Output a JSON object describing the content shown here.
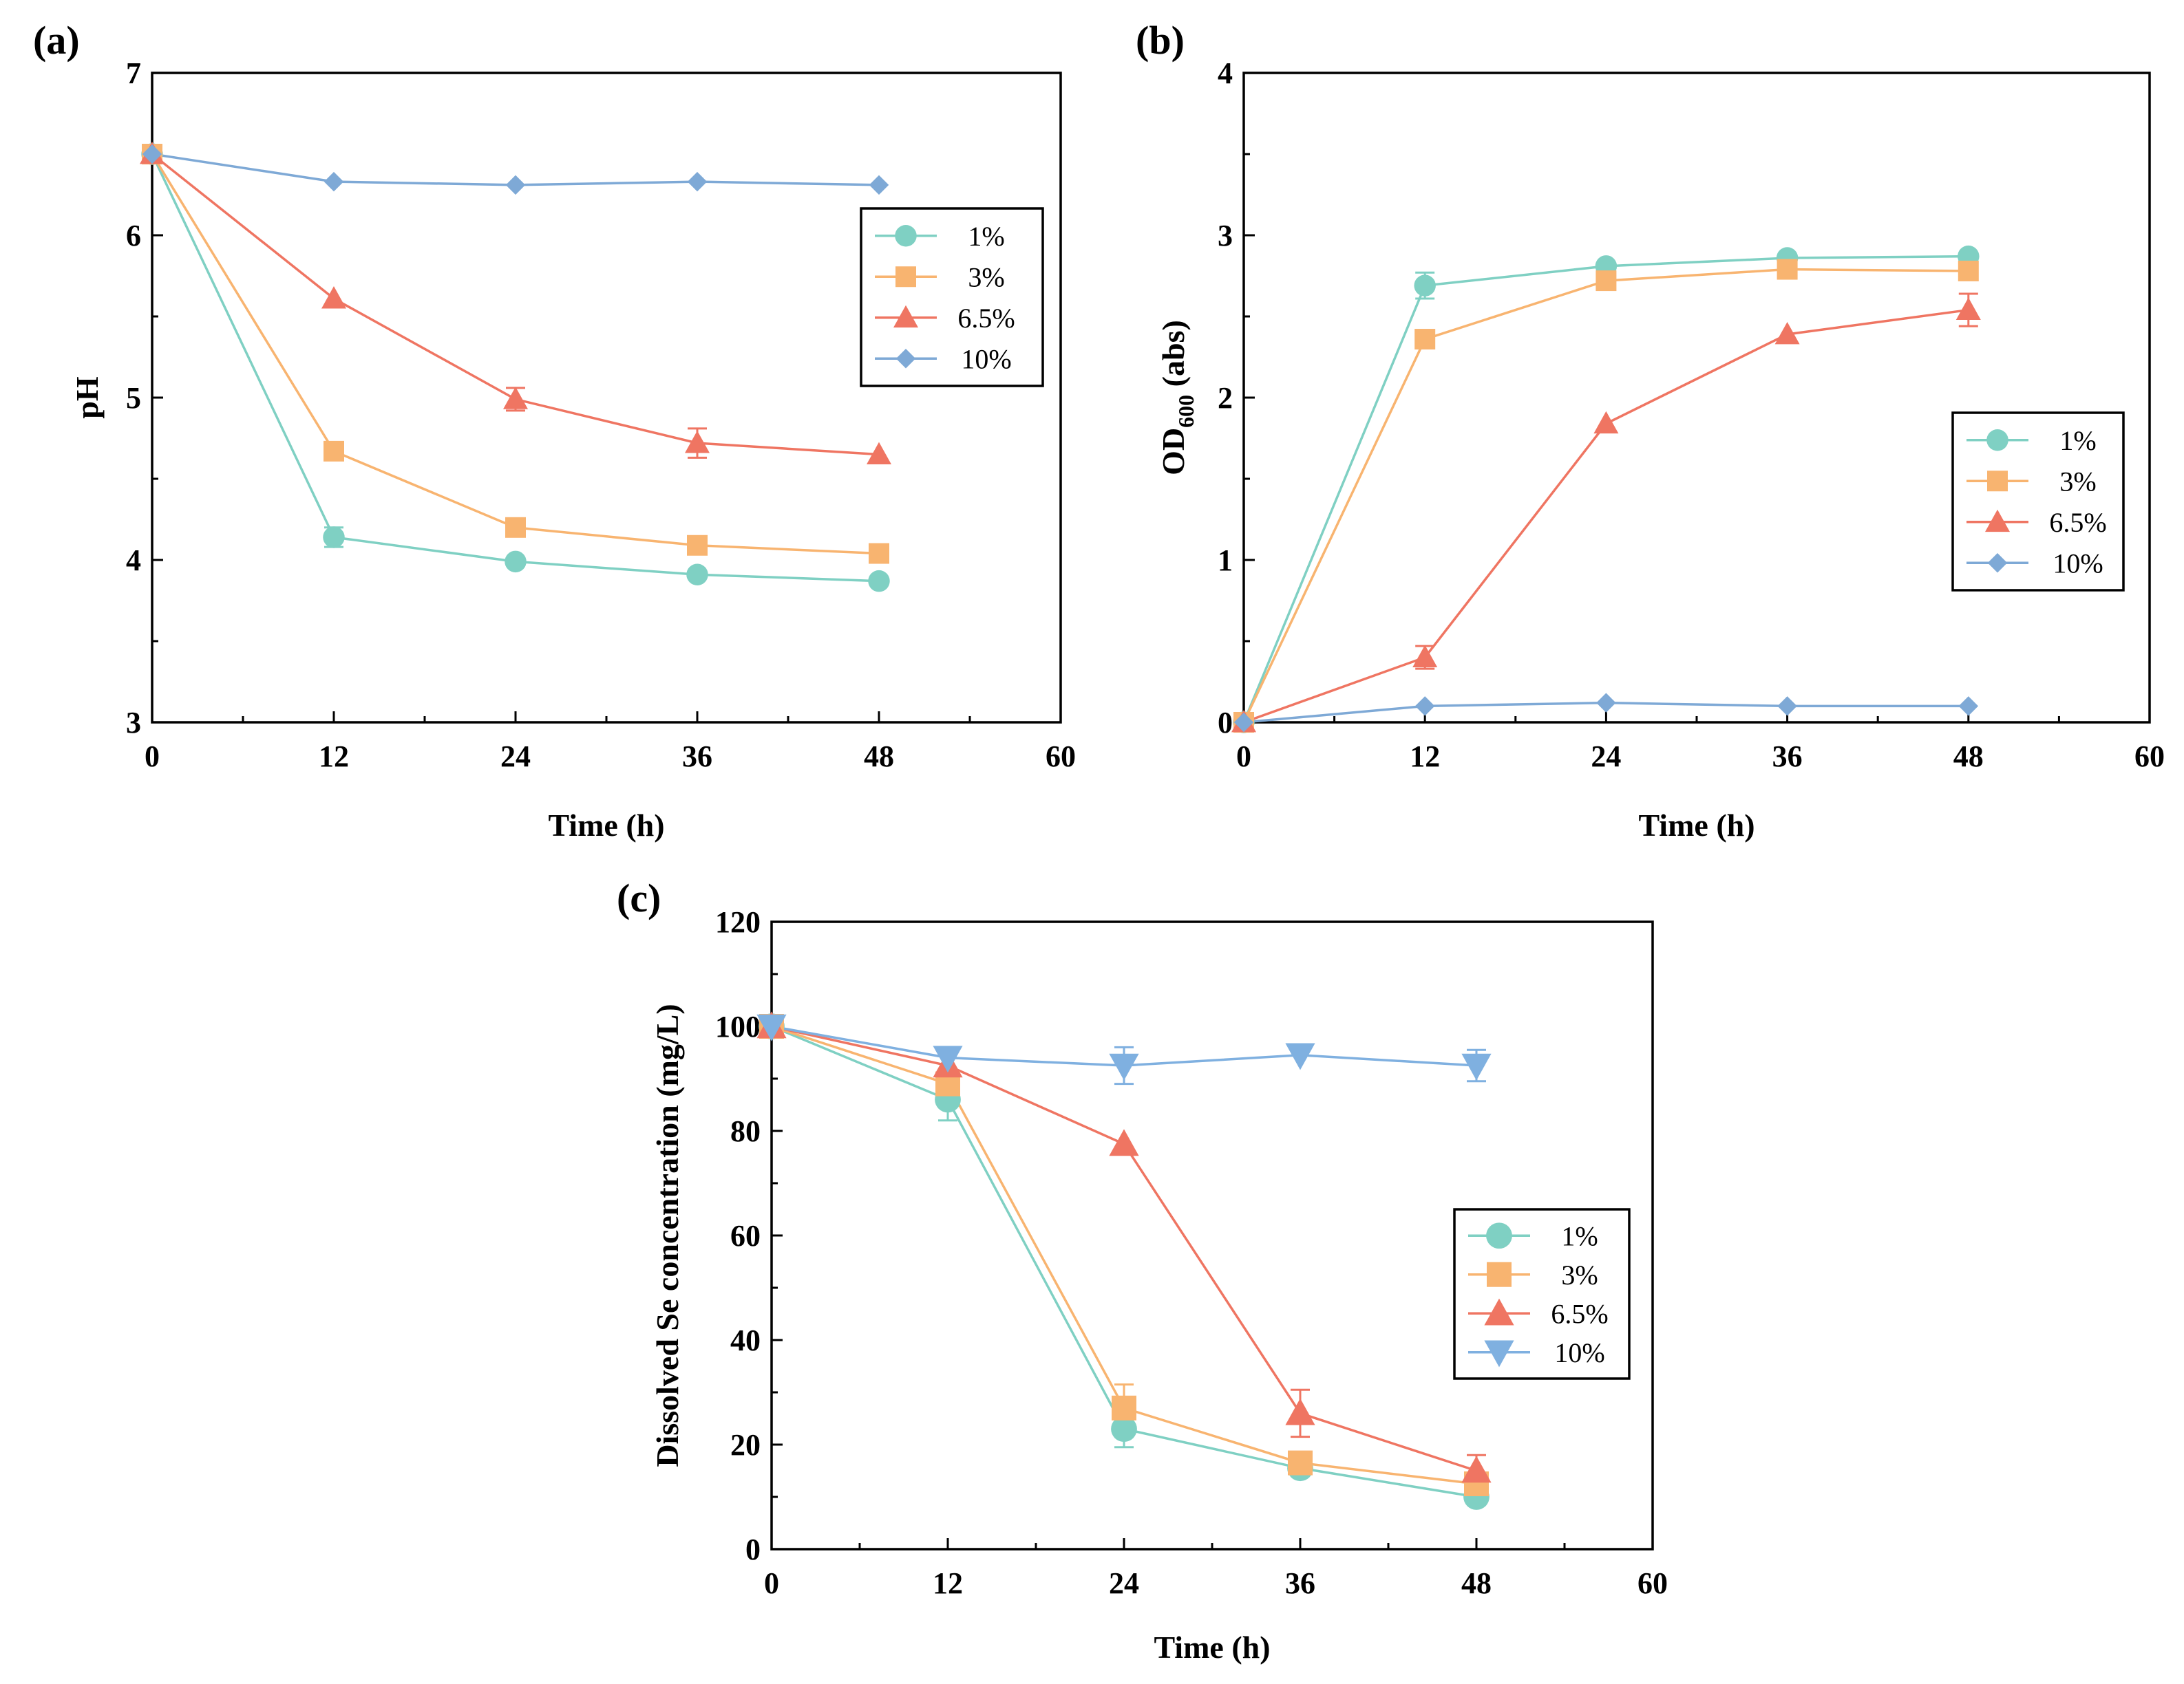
{
  "colors": {
    "teal": "#7fd0c3",
    "orange": "#f8b470",
    "red": "#ef7562",
    "blue": "#7ea9d6",
    "blue_light": "#7fb0e0"
  },
  "chart_data": [
    {
      "type": "line",
      "panel_label": "(a)",
      "xlabel": "Time (h)",
      "ylabel": "pH",
      "xlim": [
        0,
        60
      ],
      "ylim": [
        3,
        7
      ],
      "xticks": [
        0,
        12,
        24,
        36,
        48,
        60
      ],
      "yticks": [
        3,
        4,
        5,
        6,
        7
      ],
      "x_tick_labels": [
        "0",
        "12",
        "24",
        "36",
        "48",
        "60"
      ],
      "y_tick_labels": [
        "3",
        "4",
        "5",
        "6",
        "7"
      ],
      "x": [
        0,
        12,
        24,
        36,
        48
      ],
      "legend_position": "upper-right",
      "series": [
        {
          "name": "1%",
          "marker": "circle",
          "color": "#7fd0c3",
          "values": [
            6.5,
            4.14,
            3.99,
            3.91,
            3.87
          ],
          "errors": [
            0,
            0.06,
            0,
            0,
            0
          ]
        },
        {
          "name": "3%",
          "marker": "square",
          "color": "#f8b470",
          "values": [
            6.5,
            4.67,
            4.2,
            4.09,
            4.04
          ],
          "errors": [
            0,
            0.05,
            0,
            0,
            0
          ]
        },
        {
          "name": "6.5%",
          "marker": "triangle-up",
          "color": "#ef7562",
          "values": [
            6.5,
            5.61,
            4.99,
            4.72,
            4.65
          ],
          "errors": [
            0,
            0,
            0.07,
            0.09,
            0
          ]
        },
        {
          "name": "10%",
          "marker": "diamond",
          "color": "#7ea9d6",
          "values": [
            6.5,
            6.33,
            6.31,
            6.33,
            6.31
          ],
          "errors": [
            0,
            0,
            0,
            0,
            0
          ]
        }
      ]
    },
    {
      "type": "line",
      "panel_label": "(b)",
      "xlabel": "Time (h)",
      "ylabel_main": "OD",
      "ylabel_sub": "600",
      "ylabel_rest": " (abs)",
      "xlim": [
        0,
        60
      ],
      "ylim": [
        0,
        4
      ],
      "xticks": [
        0,
        12,
        24,
        36,
        48,
        60
      ],
      "yticks": [
        0,
        1,
        2,
        3,
        4
      ],
      "x_tick_labels": [
        "0",
        "12",
        "24",
        "36",
        "48",
        "60"
      ],
      "y_tick_labels": [
        "0",
        "1",
        "2",
        "3",
        "4"
      ],
      "x": [
        0,
        12,
        24,
        36,
        48
      ],
      "legend_position": "right",
      "series": [
        {
          "name": "1%",
          "marker": "circle",
          "color": "#7fd0c3",
          "values": [
            0,
            2.69,
            2.81,
            2.86,
            2.87
          ],
          "errors": [
            0,
            0.08,
            0,
            0,
            0
          ]
        },
        {
          "name": "3%",
          "marker": "square",
          "color": "#f8b470",
          "values": [
            0,
            2.36,
            2.72,
            2.79,
            2.78
          ],
          "errors": [
            0,
            0,
            0.04,
            0,
            0
          ]
        },
        {
          "name": "6.5%",
          "marker": "triangle-up",
          "color": "#ef7562",
          "values": [
            0,
            0.4,
            1.84,
            2.39,
            2.54
          ],
          "errors": [
            0,
            0.07,
            0,
            0,
            0.1
          ]
        },
        {
          "name": "10%",
          "marker": "diamond",
          "color": "#7ea9d6",
          "values": [
            0,
            0.1,
            0.12,
            0.1,
            0.1
          ],
          "errors": [
            0,
            0,
            0,
            0,
            0
          ]
        }
      ]
    },
    {
      "type": "line",
      "panel_label": "(c)",
      "xlabel": "Time (h)",
      "ylabel": "Dissolved Se concentration (mg/L)",
      "xlim": [
        0,
        60
      ],
      "ylim": [
        0,
        120
      ],
      "xticks": [
        0,
        12,
        24,
        36,
        48,
        60
      ],
      "yticks": [
        0,
        20,
        40,
        60,
        80,
        100,
        120
      ],
      "x_tick_labels": [
        "0",
        "12",
        "24",
        "36",
        "48",
        "60"
      ],
      "y_tick_labels": [
        "0",
        "20",
        "40",
        "60",
        "80",
        "100",
        "120"
      ],
      "x": [
        0,
        12,
        24,
        36,
        48
      ],
      "legend_position": "right",
      "series": [
        {
          "name": "1%",
          "marker": "circle",
          "color": "#7fd0c3",
          "values": [
            100,
            86,
            23,
            15.5,
            10
          ],
          "errors": [
            2,
            4,
            3.5,
            0,
            0
          ]
        },
        {
          "name": "3%",
          "marker": "square",
          "color": "#f8b470",
          "values": [
            100,
            89,
            27,
            16.5,
            12.5
          ],
          "errors": [
            0,
            0,
            4.5,
            2,
            0
          ]
        },
        {
          "name": "6.5%",
          "marker": "triangle-up",
          "color": "#ef7562",
          "values": [
            100,
            92.5,
            77.5,
            26,
            15
          ],
          "errors": [
            0,
            0,
            0,
            4.5,
            3
          ]
        },
        {
          "name": "10%",
          "marker": "triangle-down",
          "color": "#7fb0e0",
          "values": [
            100,
            94,
            92.5,
            94.5,
            92.5
          ],
          "errors": [
            0,
            0,
            3.5,
            0,
            3
          ]
        }
      ]
    }
  ]
}
